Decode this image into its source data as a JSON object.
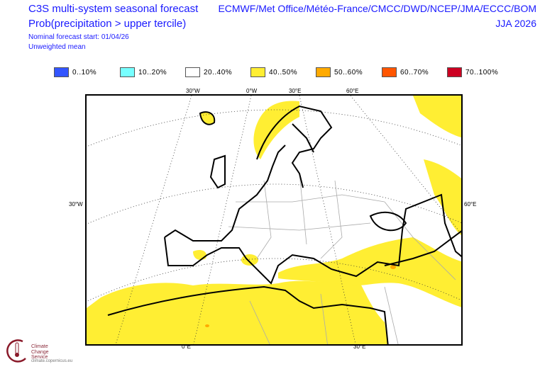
{
  "header": {
    "title": "C3S multi-system seasonal forecast",
    "subtitle": "Prob(precipitation > upper tercile)",
    "start": "Nominal forecast start: 01/04/26",
    "mean": "Unweighted mean",
    "centres": "ECMWF/Met Office/Météo-France/CMCC/DWD/NCEP/JMA/ECCC/BOM",
    "season": "JJA 2026"
  },
  "legend": [
    {
      "label": "0..10%",
      "color": "#3355ff"
    },
    {
      "label": "10..20%",
      "color": "#77ffff"
    },
    {
      "label": "20..40%",
      "color": "#ffffff"
    },
    {
      "label": "40..50%",
      "color": "#ffee33"
    },
    {
      "label": "50..60%",
      "color": "#ffaa00"
    },
    {
      "label": "60..70%",
      "color": "#ff5500"
    },
    {
      "label": "70..100%",
      "color": "#cc0022"
    }
  ],
  "axes": {
    "top": [
      "30°W",
      "0°W",
      "30°E",
      "60°E"
    ],
    "left": "30°W",
    "right": "60°E",
    "bottom": [
      "0°E",
      "30°E"
    ]
  },
  "logo": {
    "line1": "Climate",
    "line2": "Change Service",
    "url": "climate.copernicus.eu"
  }
}
